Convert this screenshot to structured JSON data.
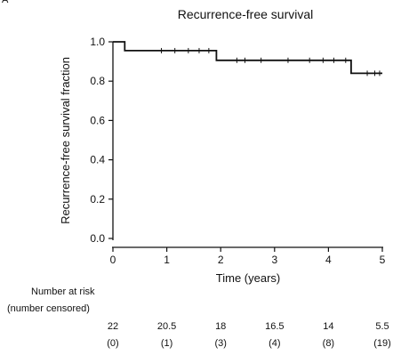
{
  "panel_label": "A",
  "risk_table": {
    "title_line1": "Number at risk",
    "title_line2": "(number censored)",
    "at_risk": [
      "22",
      "20.5",
      "18",
      "16.5",
      "14",
      "5.5"
    ],
    "censored": [
      "(0)",
      "(1)",
      "(3)",
      "(4)",
      "(8)",
      "(19)"
    ]
  },
  "chart_data": {
    "type": "line",
    "title": "Recurrence-free survival",
    "xlabel": "Time (years)",
    "ylabel": "Recurrence-free survival fraction",
    "xlim": [
      0,
      5
    ],
    "ylim": [
      0,
      1
    ],
    "x_ticks": [
      0,
      1,
      2,
      3,
      4,
      5
    ],
    "x_tick_labels": [
      "0",
      "1",
      "2",
      "3",
      "4",
      "5"
    ],
    "y_ticks": [
      0,
      0.2,
      0.4,
      0.6,
      0.8,
      1.0
    ],
    "y_tick_labels": [
      "0.0",
      "0.2",
      "0.4",
      "0.6",
      "0.8",
      "1.0"
    ],
    "grid": false,
    "line_color": "#111111",
    "series": [
      {
        "step_x": [
          0,
          0.22,
          0.22,
          1.92,
          1.92,
          4.42,
          4.42,
          5.0
        ],
        "step_y": [
          1.0,
          1.0,
          0.955,
          0.955,
          0.906,
          0.906,
          0.84,
          0.84
        ],
        "censor_x": [
          0.9,
          1.15,
          1.4,
          1.6,
          1.78,
          2.3,
          2.45,
          2.75,
          3.25,
          3.65,
          3.9,
          4.1,
          4.32,
          4.72,
          4.86,
          4.95
        ],
        "censor_y": [
          0.955,
          0.955,
          0.955,
          0.955,
          0.955,
          0.906,
          0.906,
          0.906,
          0.906,
          0.906,
          0.906,
          0.906,
          0.906,
          0.84,
          0.84,
          0.84
        ]
      }
    ]
  }
}
